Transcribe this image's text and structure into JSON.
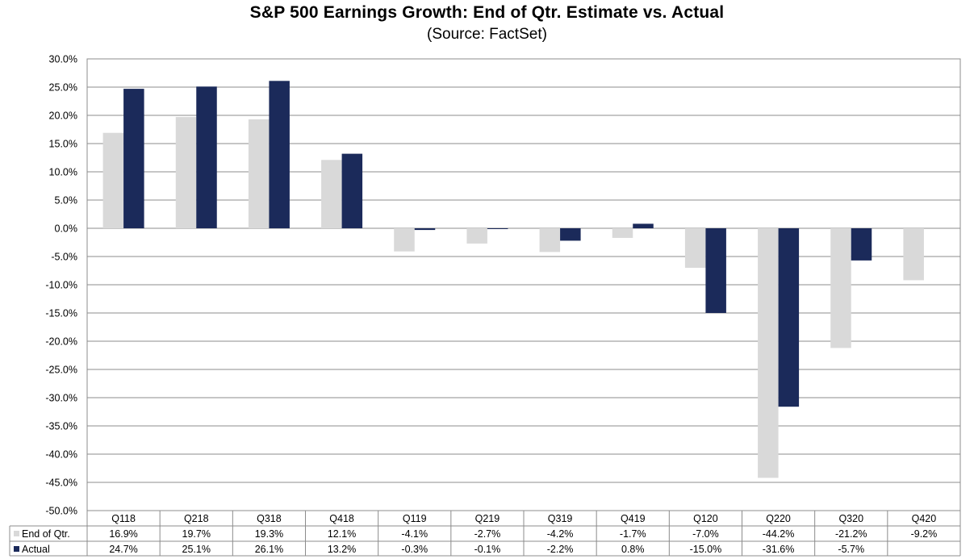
{
  "chart_data": {
    "type": "bar",
    "title": "S&P 500 Earnings Growth: End of Qtr. Estimate vs. Actual",
    "subtitle": "(Source: FactSet)",
    "categories": [
      "Q118",
      "Q218",
      "Q318",
      "Q418",
      "Q119",
      "Q219",
      "Q319",
      "Q419",
      "Q120",
      "Q220",
      "Q320",
      "Q420"
    ],
    "series": [
      {
        "name": "End of Qtr.",
        "color": "#d9d9d9",
        "values": [
          16.9,
          19.7,
          19.3,
          12.1,
          -4.1,
          -2.7,
          -4.2,
          -1.7,
          -7.0,
          -44.2,
          -21.2,
          -9.2
        ],
        "labels": [
          "16.9%",
          "19.7%",
          "19.3%",
          "12.1%",
          "-4.1%",
          "-2.7%",
          "-4.2%",
          "-1.7%",
          "-7.0%",
          "-44.2%",
          "-21.2%",
          "-9.2%"
        ]
      },
      {
        "name": "Actual",
        "color": "#1b2a5a",
        "values": [
          24.7,
          25.1,
          26.1,
          13.2,
          -0.3,
          -0.1,
          -2.2,
          0.8,
          -15.0,
          -31.6,
          -5.7,
          null
        ],
        "labels": [
          "24.7%",
          "25.1%",
          "26.1%",
          "13.2%",
          "-0.3%",
          "-0.1%",
          "-2.2%",
          "0.8%",
          "-15.0%",
          "-31.6%",
          "-5.7%",
          ""
        ]
      }
    ],
    "ylim": [
      -50,
      30
    ],
    "ystep": 5,
    "ytick_labels": [
      "30.0%",
      "25.0%",
      "20.0%",
      "15.0%",
      "10.0%",
      "5.0%",
      "0.0%",
      "-5.0%",
      "-10.0%",
      "-15.0%",
      "-20.0%",
      "-25.0%",
      "-30.0%",
      "-35.0%",
      "-40.0%",
      "-45.0%",
      "-50.0%"
    ],
    "grid": true,
    "legend": "data-table"
  }
}
